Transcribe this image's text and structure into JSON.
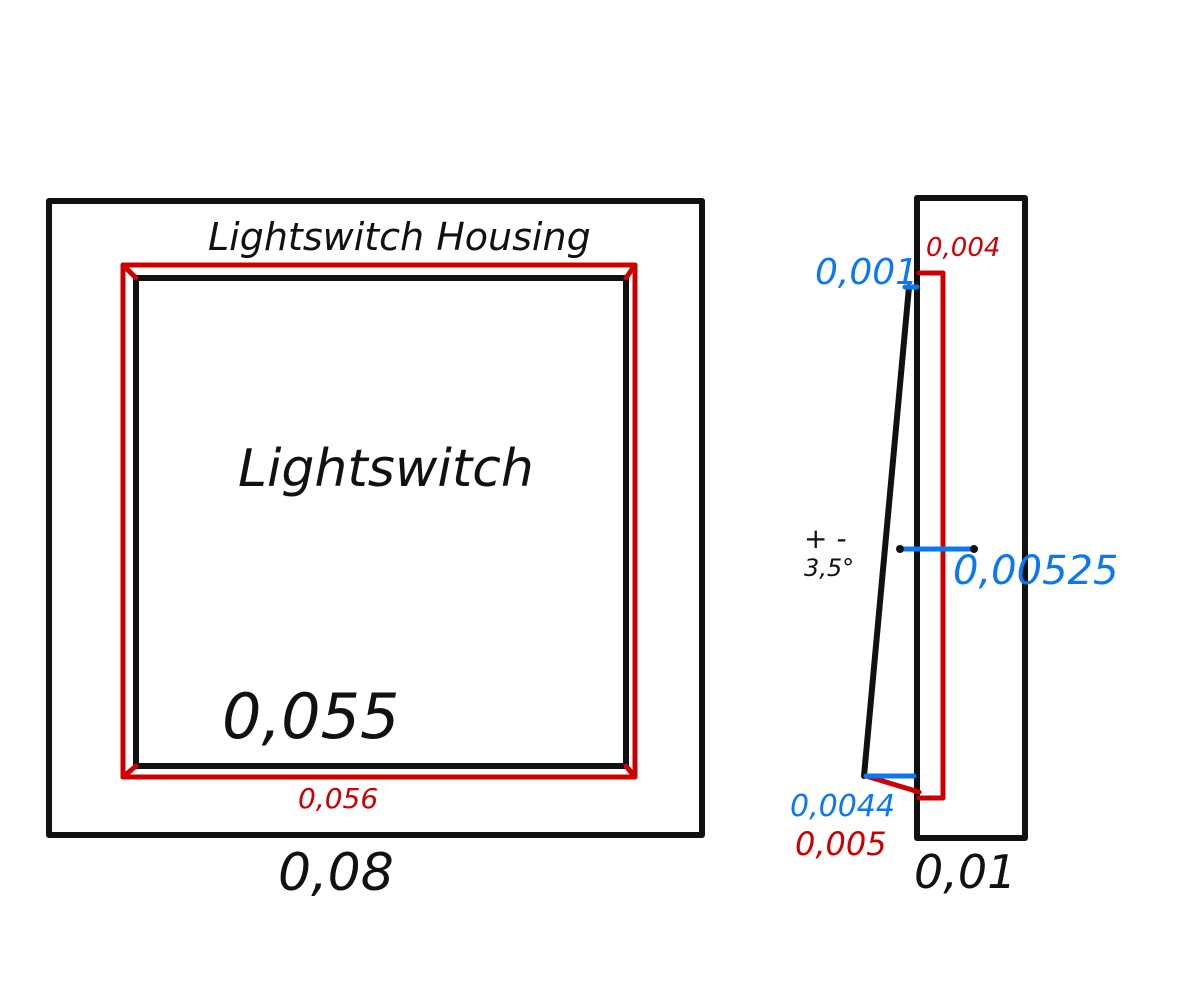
{
  "front_view": {
    "title": "Lightswitch Housing",
    "inner_label": "Lightswitch",
    "dimensions": {
      "outer_width": "0,08",
      "red_frame_width": "0,056",
      "switch_width": "0,055"
    }
  },
  "side_view": {
    "dimensions": {
      "depth": "0,01",
      "red_top": "0,004",
      "blue_top": "0,001",
      "blue_middle": "0,00525",
      "blue_bottom": "0,0044",
      "red_bottom": "0,005"
    },
    "tilt": {
      "symbol": "+ -",
      "angle": "3,5°"
    }
  },
  "colors": {
    "outline": "#111111",
    "red": "#cc0000",
    "blue": "#0a78f5",
    "background": "#ffffff"
  }
}
